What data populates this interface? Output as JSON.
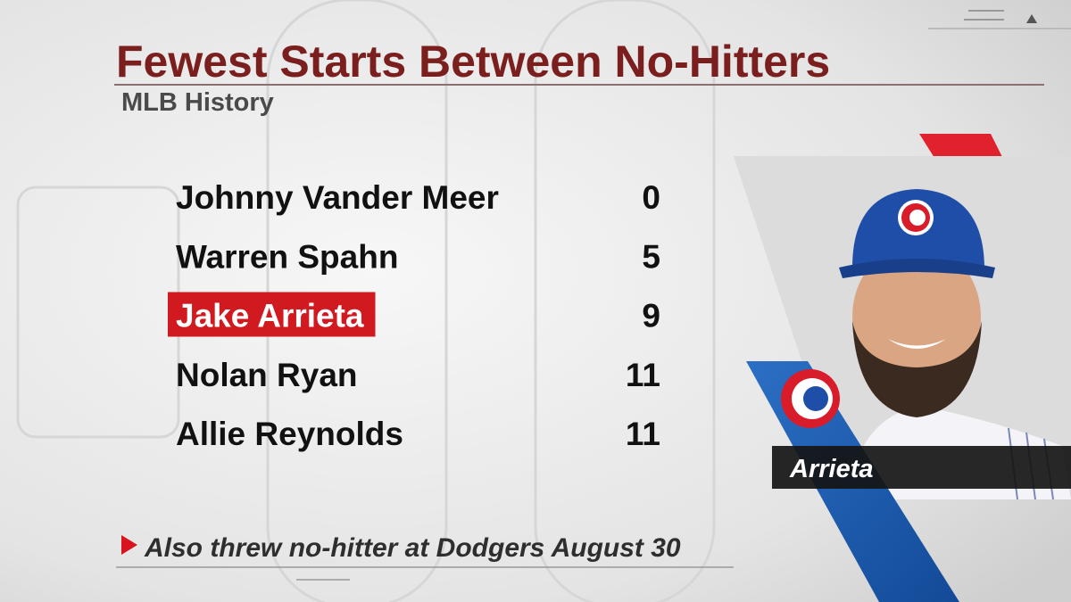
{
  "header": {
    "title": "Fewest Starts Between No-Hitters",
    "subtitle": "MLB History"
  },
  "table": {
    "rows": [
      [
        "Johnny Vander Meer",
        0
      ],
      [
        "Warren Spahn",
        5
      ],
      [
        "Jake Arrieta",
        9
      ],
      [
        "Nolan Ryan",
        11
      ],
      [
        "Allie Reynolds",
        11
      ]
    ],
    "highlight_row": 2
  },
  "photo": {
    "caption": "Arrieta"
  },
  "footer": {
    "note": "Also threw no-hitter at Dodgers August 30"
  }
}
